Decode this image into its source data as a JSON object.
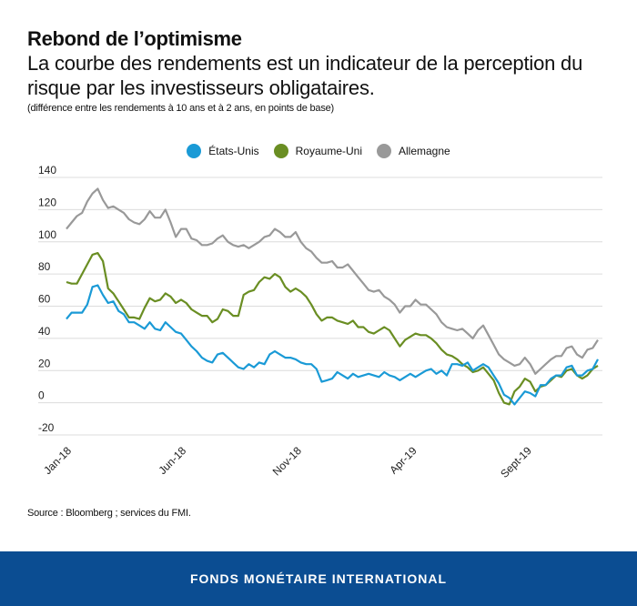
{
  "header": {
    "title": "Rebond de l’optimisme",
    "subtitle": "La courbe des rendements est un indicateur de la perception du risque par les investisseurs obligataires.",
    "note": "(différence entre les rendements à 10 ans et à 2 ans, en points de base)"
  },
  "legend": [
    {
      "label": "États-Unis",
      "color": "#1a9ad6"
    },
    {
      "label": "Royaume-Uni",
      "color": "#6a8e23"
    },
    {
      "label": "Allemagne",
      "color": "#999999"
    }
  ],
  "source": "Source : Bloomberg ; services du FMI.",
  "footer": "FONDS MONÉTAIRE INTERNATIONAL",
  "chart_data": {
    "type": "line",
    "title": "Rebond de l’optimisme",
    "xlabel": "",
    "ylabel": "points de base",
    "ylim": [
      -20,
      140
    ],
    "yticks": [
      140,
      120,
      100,
      80,
      60,
      40,
      20,
      0,
      -20
    ],
    "xtick_labels": [
      {
        "label": "Jan-18",
        "pos": 0
      },
      {
        "label": "Jun-18",
        "pos": 0.216
      },
      {
        "label": "Nov-18",
        "pos": 0.433
      },
      {
        "label": "Apr-19",
        "pos": 0.65
      },
      {
        "label": "Sept-19",
        "pos": 0.866
      }
    ],
    "grid": true,
    "legend_position": "top-center",
    "x_periods": "weekly, Jan-2018 to mid-Nov-2019",
    "series": [
      {
        "name": "États-Unis",
        "color": "#1a9ad6",
        "values": [
          52,
          56,
          56,
          56,
          61,
          72,
          73,
          67,
          62,
          63,
          57,
          55,
          50,
          50,
          48,
          46,
          50,
          46,
          45,
          50,
          47,
          44,
          43,
          39,
          35,
          32,
          28,
          26,
          25,
          30,
          31,
          28,
          25,
          22,
          21,
          24,
          22,
          25,
          24,
          30,
          32,
          30,
          28,
          28,
          27,
          25,
          24,
          24,
          21,
          13,
          14,
          15,
          19,
          17,
          15,
          18,
          16,
          17,
          18,
          17,
          16,
          19,
          17,
          16,
          14,
          16,
          18,
          16,
          18,
          20,
          21,
          18,
          20,
          17,
          24,
          24,
          23,
          25,
          20,
          22,
          24,
          22,
          17,
          12,
          5,
          3,
          -1,
          3,
          7,
          6,
          4,
          11,
          11,
          15,
          17,
          17,
          22,
          23,
          17,
          17,
          20,
          21,
          27
        ]
      },
      {
        "name": "Royaume-Uni",
        "color": "#6a8e23",
        "values": [
          75,
          74,
          74,
          80,
          86,
          92,
          93,
          88,
          71,
          68,
          63,
          58,
          53,
          53,
          52,
          59,
          65,
          63,
          64,
          68,
          66,
          62,
          64,
          62,
          58,
          56,
          54,
          54,
          50,
          52,
          58,
          57,
          54,
          54,
          67,
          69,
          70,
          75,
          78,
          77,
          80,
          78,
          72,
          69,
          71,
          69,
          66,
          61,
          55,
          51,
          53,
          53,
          51,
          50,
          49,
          51,
          47,
          47,
          44,
          43,
          45,
          47,
          45,
          40,
          35,
          39,
          41,
          43,
          42,
          42,
          40,
          37,
          33,
          30,
          29,
          27,
          24,
          22,
          19,
          20,
          22,
          18,
          14,
          6,
          0,
          -1,
          7,
          10,
          15,
          13,
          7,
          10,
          11,
          14,
          17,
          16,
          20,
          21,
          17,
          15,
          17,
          21,
          23
        ]
      },
      {
        "name": "Allemagne",
        "color": "#999999",
        "values": [
          108,
          112,
          116,
          118,
          125,
          130,
          133,
          126,
          121,
          122,
          120,
          118,
          114,
          112,
          111,
          114,
          119,
          115,
          115,
          120,
          112,
          103,
          108,
          108,
          102,
          101,
          98,
          98,
          99,
          102,
          104,
          100,
          98,
          97,
          98,
          96,
          98,
          100,
          103,
          104,
          108,
          106,
          103,
          103,
          106,
          100,
          96,
          94,
          90,
          87,
          87,
          88,
          84,
          84,
          86,
          82,
          78,
          74,
          70,
          69,
          70,
          66,
          64,
          61,
          56,
          60,
          60,
          64,
          61,
          61,
          58,
          55,
          50,
          47,
          46,
          45,
          46,
          43,
          40,
          45,
          48,
          42,
          36,
          30,
          27,
          25,
          23,
          24,
          28,
          24,
          18,
          21,
          24,
          27,
          29,
          29,
          34,
          35,
          30,
          28,
          33,
          34,
          39
        ]
      }
    ]
  }
}
